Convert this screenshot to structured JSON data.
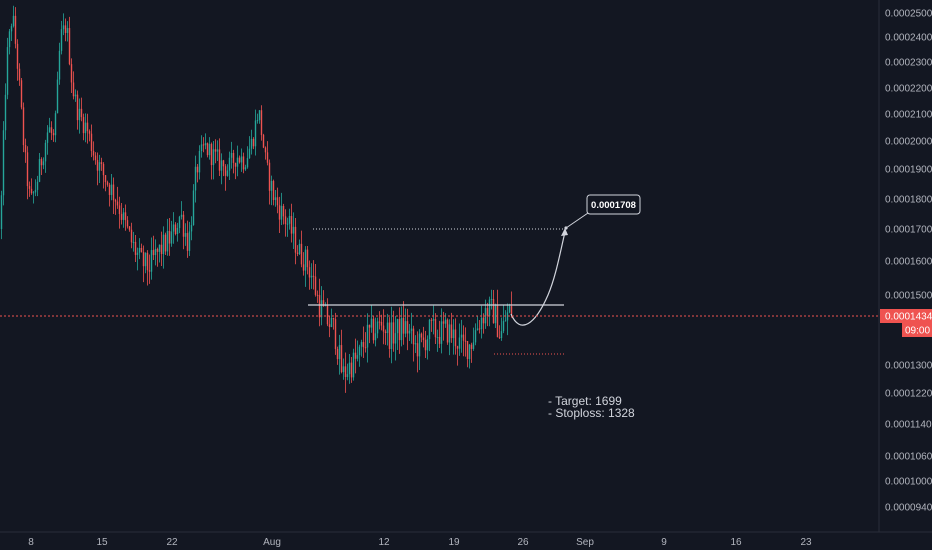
{
  "colors": {
    "background": "#131722",
    "up": "#26a69a",
    "down": "#ef5350",
    "text": "#b2b5be",
    "price_line": "#ef5350",
    "drawing": "#d1d4dc"
  },
  "chart_data": {
    "type": "candlestick",
    "title": "",
    "xlabel": "",
    "ylabel": "",
    "y_axis": {
      "ticks": [
        "0.0002500",
        "0.0002400",
        "0.0002300",
        "0.0002200",
        "0.0002100",
        "0.0002000",
        "0.0001900",
        "0.0001800",
        "0.0001700",
        "0.0001600",
        "0.0001500",
        "0.0001300",
        "0.0001220",
        "0.0001140",
        "0.0001060",
        "0.0001000",
        "0.0000940"
      ]
    },
    "x_axis": {
      "ticks": [
        "8",
        "15",
        "22",
        "Aug",
        "12",
        "19",
        "26",
        "Sep",
        "9",
        "16",
        "23"
      ]
    },
    "current_price": {
      "label": "0.0001434",
      "countdown": "09:00"
    },
    "annotations": {
      "target_box": "0.0001708",
      "notes": [
        "- Target: 1699",
        "- Stoploss: 1328"
      ]
    },
    "series_profile": {
      "description_points": [
        [
          0,
          0.00017
        ],
        [
          6,
          0.00023
        ],
        [
          12,
          0.00025
        ],
        [
          18,
          0.000225
        ],
        [
          24,
          0.000195
        ],
        [
          30,
          0.000178
        ],
        [
          36,
          0.000185
        ],
        [
          42,
          0.000195
        ],
        [
          48,
          0.000205
        ],
        [
          54,
          0.0002
        ],
        [
          60,
          0.00024
        ],
        [
          66,
          0.000245
        ],
        [
          72,
          0.00022
        ],
        [
          78,
          0.00021
        ],
        [
          86,
          0.000205
        ],
        [
          94,
          0.000195
        ],
        [
          100,
          0.00019
        ],
        [
          108,
          0.000185
        ],
        [
          116,
          0.00018
        ],
        [
          124,
          0.000172
        ],
        [
          132,
          0.000165
        ],
        [
          140,
          0.00016
        ],
        [
          148,
          0.000158
        ],
        [
          156,
          0.000162
        ],
        [
          164,
          0.000165
        ],
        [
          172,
          0.000168
        ],
        [
          180,
          0.000175
        ],
        [
          188,
          0.000165
        ],
        [
          196,
          0.00019
        ],
        [
          204,
          0.000198
        ],
        [
          212,
          0.000195
        ],
        [
          220,
          0.000192
        ],
        [
          228,
          0.00019
        ],
        [
          236,
          0.000195
        ],
        [
          244,
          0.000193
        ],
        [
          252,
          0.0002
        ],
        [
          258,
          0.000212
        ],
        [
          266,
          0.00019
        ],
        [
          274,
          0.00018
        ],
        [
          282,
          0.000175
        ],
        [
          290,
          0.00017
        ],
        [
          298,
          0.000163
        ],
        [
          306,
          0.00016
        ],
        [
          312,
          0.000155
        ],
        [
          318,
          0.000148
        ],
        [
          326,
          0.000143
        ],
        [
          334,
          0.00014
        ],
        [
          342,
          0.000127
        ],
        [
          350,
          0.00013
        ],
        [
          358,
          0.000132
        ],
        [
          366,
          0.000138
        ],
        [
          374,
          0.00014
        ],
        [
          382,
          0.000142
        ],
        [
          390,
          0.000138
        ],
        [
          398,
          0.00014
        ],
        [
          406,
          0.000141
        ],
        [
          414,
          0.000135
        ],
        [
          422,
          0.000136
        ],
        [
          430,
          0.00014
        ],
        [
          438,
          0.000139
        ],
        [
          446,
          0.00014
        ],
        [
          454,
          0.000138
        ],
        [
          462,
          0.000135
        ],
        [
          470,
          0.000136
        ],
        [
          478,
          0.000142
        ],
        [
          486,
          0.000146
        ],
        [
          494,
          0.000145
        ],
        [
          500,
          0.000138
        ],
        [
          506,
          0.000144
        ],
        [
          512,
          0.000146
        ]
      ]
    }
  }
}
